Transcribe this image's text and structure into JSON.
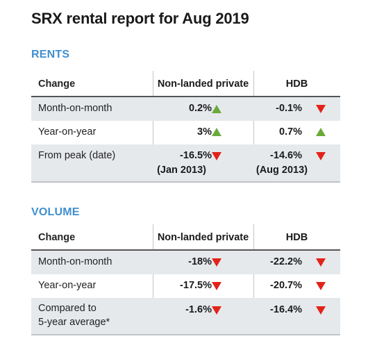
{
  "title": "SRX rental report for Aug 2019",
  "colors": {
    "section": "#3f8fcf",
    "up": "#6aaa3a",
    "down": "#e2231a",
    "shade": "#e6e9ec"
  },
  "rents": {
    "label": "RENTS",
    "headers": [
      "Change",
      "Non-landed private",
      "HDB"
    ],
    "rows": [
      {
        "label": "Month-on-month",
        "private": "0.2%",
        "private_dir": "up-triangle-icon",
        "hdb": "-0.1%",
        "hdb_dir": "down-triangle-icon"
      },
      {
        "label": "Year-on-year",
        "private": "3%",
        "private_dir": "up-triangle-icon",
        "hdb": "0.7%",
        "hdb_dir": "up-triangle-icon"
      },
      {
        "label": "From peak (date)",
        "private": "-16.5%",
        "private_sub": "(Jan 2013)",
        "private_dir": "down-triangle-icon",
        "hdb": "-14.6%",
        "hdb_sub": "(Aug 2013)",
        "hdb_dir": "down-triangle-icon"
      }
    ]
  },
  "volume": {
    "label": "VOLUME",
    "headers": [
      "Change",
      "Non-landed private",
      "HDB"
    ],
    "rows": [
      {
        "label": "Month-on-month",
        "private": "-18%",
        "private_dir": "down-triangle-icon",
        "hdb": "-22.2%",
        "hdb_dir": "down-triangle-icon"
      },
      {
        "label": "Year-on-year",
        "private": "-17.5%",
        "private_dir": "down-triangle-icon",
        "hdb": "-20.7%",
        "hdb_dir": "down-triangle-icon"
      },
      {
        "label_line1": "Compared to",
        "label_line2": "5-year average*",
        "private": "-1.6%",
        "private_dir": "down-triangle-icon",
        "hdb": "-16.4%",
        "hdb_dir": "down-triangle-icon"
      }
    ]
  }
}
